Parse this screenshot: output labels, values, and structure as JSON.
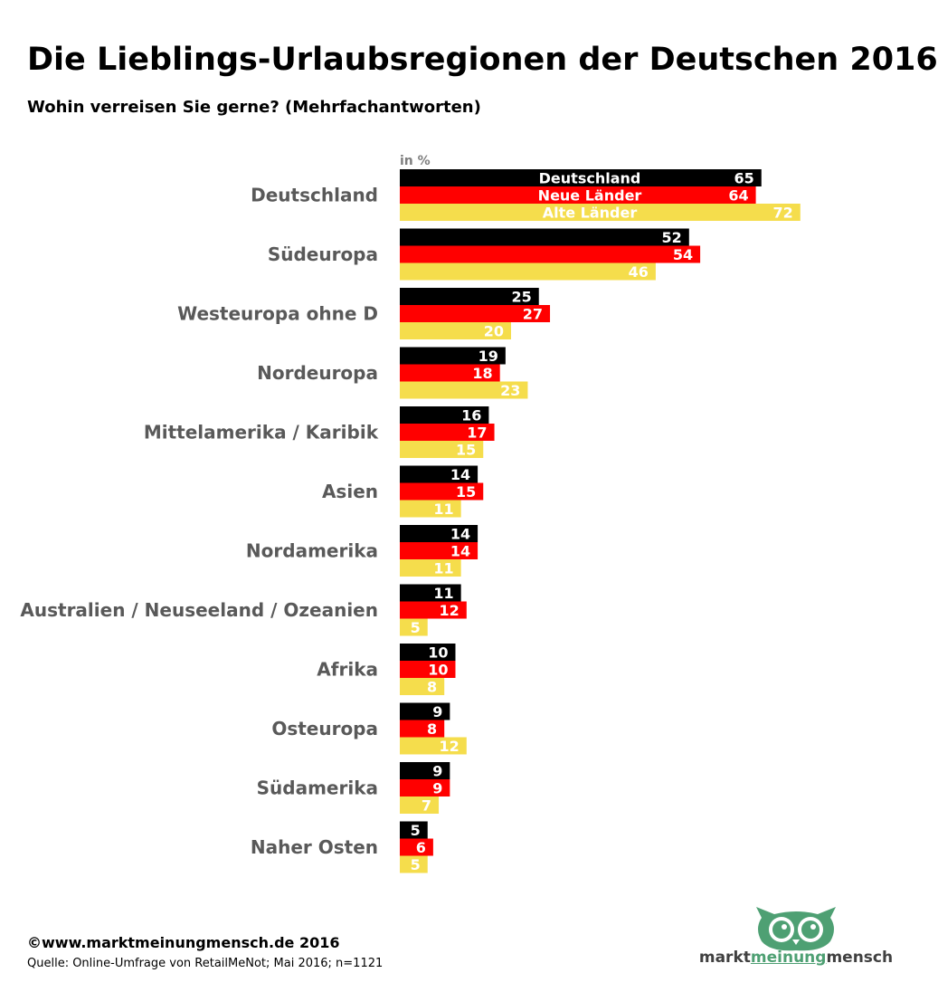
{
  "title": "Die Lieblings-Urlaubsregionen der Deutschen 2016",
  "subtitle": "Wohin verreisen Sie gerne? (Mehrfachantworten)",
  "footer": {
    "copyright": "©www.marktmeinungmensch.de 2016",
    "source": "Quelle: Online-Umfrage von RetailMeNot; Mai 2016; n=1121"
  },
  "logo": {
    "word1": "markt",
    "word2": "meinung",
    "word3": "mensch",
    "icon": "owl-icon"
  },
  "chart_data": {
    "type": "bar",
    "orientation": "horizontal",
    "unit_label": "in %",
    "legend_placement": "inside-first-group",
    "categories": [
      "Deutschland",
      "Südeuropa",
      "Westeuropa ohne D",
      "Nordeuropa",
      "Mittelamerika / Karibik",
      "Asien",
      "Nordamerika",
      "Australien / Neuseeland / Ozeanien",
      "Afrika",
      "Osteuropa",
      "Südamerika",
      "Naher Osten"
    ],
    "series": [
      {
        "name": "Deutschland",
        "color": "#000000",
        "values": [
          65,
          52,
          25,
          19,
          16,
          14,
          14,
          11,
          10,
          9,
          9,
          5
        ]
      },
      {
        "name": "Neue Länder",
        "color": "#ff0000",
        "values": [
          64,
          54,
          27,
          18,
          17,
          15,
          14,
          12,
          10,
          8,
          9,
          6
        ]
      },
      {
        "name": "Alte Länder",
        "color": "#f5dd4c",
        "values": [
          72,
          46,
          20,
          23,
          15,
          11,
          11,
          5,
          8,
          12,
          7,
          5
        ]
      }
    ],
    "xlim": [
      0,
      72
    ],
    "grid": false
  }
}
